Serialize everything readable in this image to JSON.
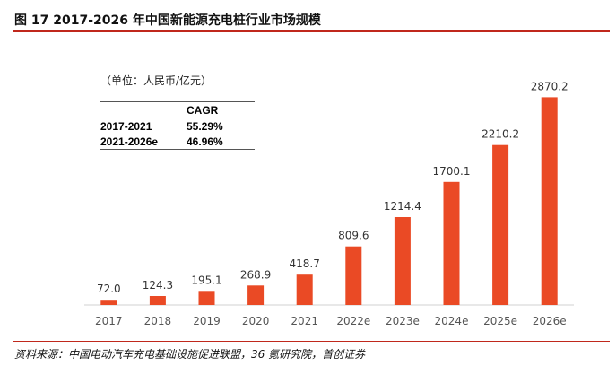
{
  "title": "图 17 2017-2026 年中国新能源充电桩行业市场规模",
  "unit_note": "（单位：人民币/亿元）",
  "cagr_table": {
    "header": [
      "",
      "CAGR"
    ],
    "rows": [
      {
        "period": "2017-2021",
        "value": "55.29%"
      },
      {
        "period": "2021-2026e",
        "value": "46.96%"
      }
    ]
  },
  "source": "资料来源：中国电动汽车充电基础设施促进联盟，36 氪研究院，首创证券",
  "colors": {
    "bar": "#ea4a25",
    "accent_line": "#c0281c"
  },
  "chart_data": {
    "type": "bar",
    "categories": [
      "2017",
      "2018",
      "2019",
      "2020",
      "2021",
      "2022e",
      "2023e",
      "2024e",
      "2025e",
      "2026e"
    ],
    "values": [
      72.0,
      124.3,
      195.1,
      268.9,
      418.7,
      809.6,
      1214.4,
      1700.1,
      2210.2,
      2870.2
    ],
    "data_labels": [
      "72.0",
      "124.3",
      "195.1",
      "268.9",
      "418.7",
      "809.6",
      "1214.4",
      "1700.1",
      "2210.2",
      "2870.2"
    ],
    "ylim": [
      0,
      2900
    ],
    "grid": false,
    "legend": "none"
  }
}
